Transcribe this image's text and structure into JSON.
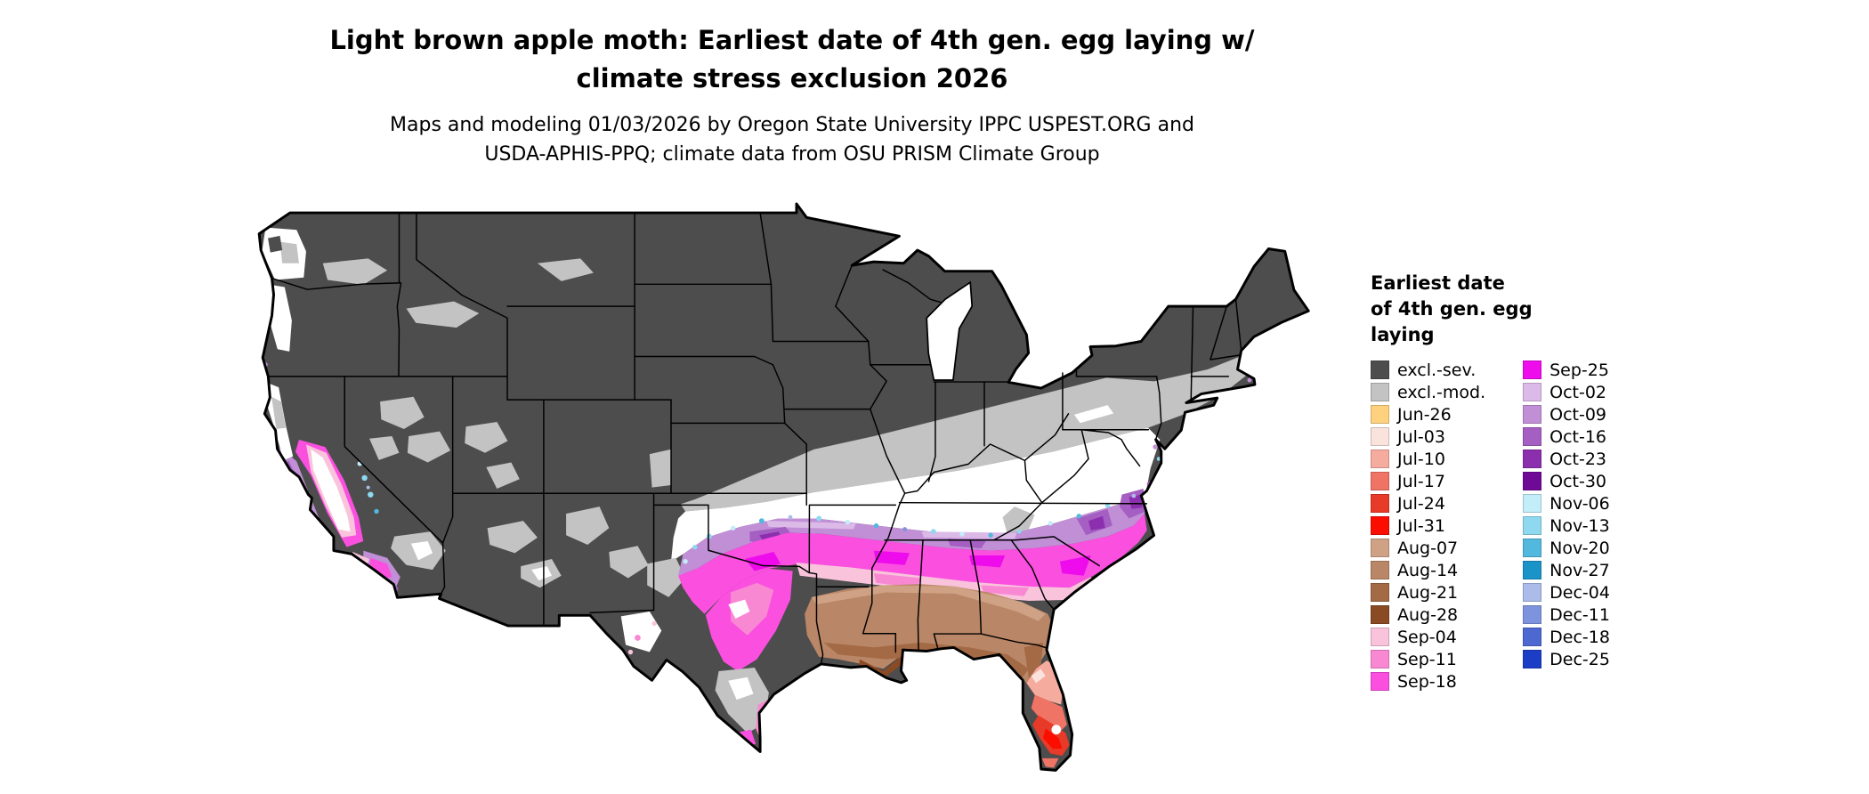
{
  "title": {
    "line1": "Light brown apple moth: Earliest date of 4th gen. egg laying w/",
    "line2": "climate stress exclusion 2026"
  },
  "subtitle": {
    "line1": "Maps and modeling 01/03/2026 by Oregon State University IPPC USPEST.ORG and",
    "line2": "USDA-APHIS-PPQ; climate data from OSU PRISM Climate Group"
  },
  "legend": {
    "title": "Earliest date\nof 4th gen. egg\nlaying",
    "column1": [
      {
        "key": "exclSev",
        "label": "excl.-sev."
      },
      {
        "key": "exclMod",
        "label": "excl.-mod."
      },
      {
        "key": "jun26",
        "label": "Jun-26"
      },
      {
        "key": "jul03",
        "label": "Jul-03"
      },
      {
        "key": "jul10",
        "label": "Jul-10"
      },
      {
        "key": "jul17",
        "label": "Jul-17"
      },
      {
        "key": "jul24",
        "label": "Jul-24"
      },
      {
        "key": "jul31",
        "label": "Jul-31"
      },
      {
        "key": "aug07",
        "label": "Aug-07"
      },
      {
        "key": "aug14",
        "label": "Aug-14"
      },
      {
        "key": "aug21",
        "label": "Aug-21"
      },
      {
        "key": "aug28",
        "label": "Aug-28"
      },
      {
        "key": "sep04",
        "label": "Sep-04"
      },
      {
        "key": "sep11",
        "label": "Sep-11"
      },
      {
        "key": "sep18",
        "label": "Sep-18"
      }
    ],
    "column2": [
      {
        "key": "sep25",
        "label": "Sep-25"
      },
      {
        "key": "oct02",
        "label": "Oct-02"
      },
      {
        "key": "oct09",
        "label": "Oct-09"
      },
      {
        "key": "oct16",
        "label": "Oct-16"
      },
      {
        "key": "oct23",
        "label": "Oct-23"
      },
      {
        "key": "oct30",
        "label": "Oct-30"
      },
      {
        "key": "nov06",
        "label": "Nov-06"
      },
      {
        "key": "nov13",
        "label": "Nov-13"
      },
      {
        "key": "nov20",
        "label": "Nov-20"
      },
      {
        "key": "nov27",
        "label": "Nov-27"
      },
      {
        "key": "dec04",
        "label": "Dec-04"
      },
      {
        "key": "dec11",
        "label": "Dec-11"
      },
      {
        "key": "dec18",
        "label": "Dec-18"
      },
      {
        "key": "dec25",
        "label": "Dec-25"
      }
    ]
  },
  "palette": {
    "exclSev": "#4d4d4d",
    "exclMod": "#c3c3c3",
    "jun26": "#fdd17e",
    "jul03": "#f9e3dc",
    "jul10": "#f5ab9e",
    "jul17": "#ef7465",
    "jul24": "#e83a28",
    "jul31": "#fb0d00",
    "aug07": "#d0a285",
    "aug14": "#b98767",
    "aug21": "#a46a45",
    "aug28": "#8a4a24",
    "sep04": "#f9c3dc",
    "sep11": "#f988d3",
    "sep18": "#fb4fe0",
    "sep25": "#ee0bec",
    "oct02": "#dcbae8",
    "oct09": "#c08fd6",
    "oct16": "#a55fc2",
    "oct23": "#8b2fae",
    "oct30": "#6f0a96",
    "nov06": "#c3edf9",
    "nov13": "#8ed8f0",
    "nov20": "#52b8de",
    "nov27": "#1a93c8",
    "dec04": "#abbcea",
    "dec11": "#7e93dd",
    "dec18": "#4e68d2",
    "dec25": "#1c3ec6",
    "white": "#ffffff",
    "black": "#000000"
  }
}
